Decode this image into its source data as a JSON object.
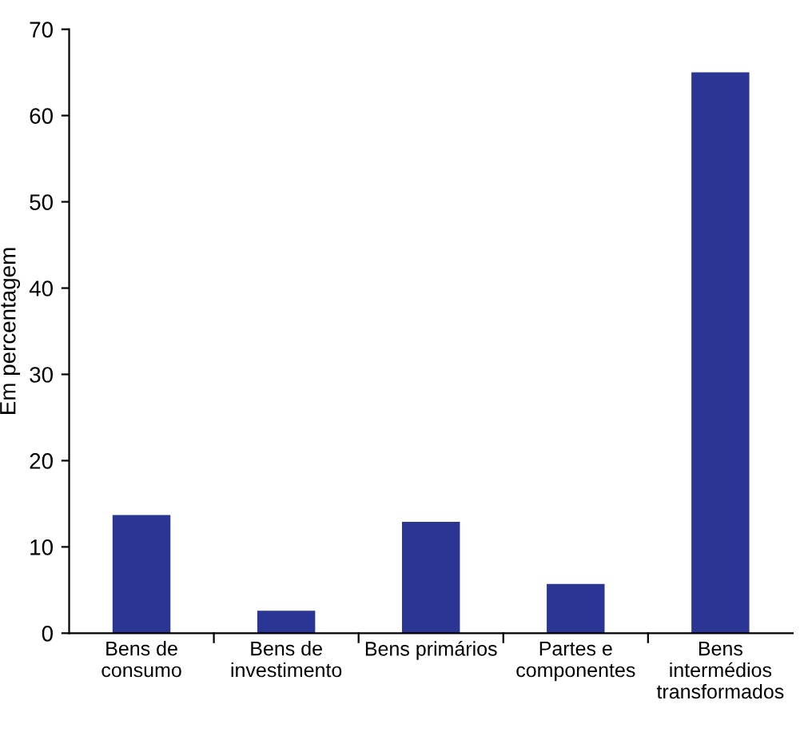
{
  "chart_data": {
    "type": "bar",
    "ylabel": "Em percentagem",
    "categories": [
      "Bens de\nconsumo",
      "Bens de\ninvestimento",
      "Bens primários",
      "Partes e\ncomponentes",
      "Bens\nintermédios\ntransformados"
    ],
    "values": [
      13.7,
      2.6,
      12.9,
      5.7,
      65
    ],
    "color": "#2b3593",
    "ylim": [
      0,
      70
    ],
    "yticks": [
      0,
      10,
      20,
      30,
      40,
      50,
      60,
      70
    ],
    "grid": false,
    "legend": false
  }
}
